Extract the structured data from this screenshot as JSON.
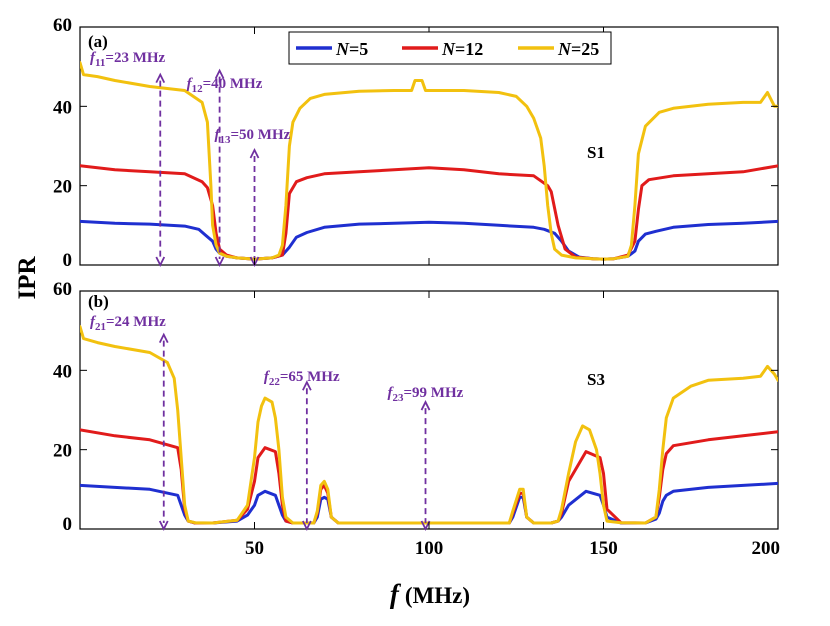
{
  "chart_data": [
    {
      "type": "line",
      "panel_label": "(a)",
      "structure": "S1",
      "xlabel": "f (MHz)",
      "ylabel": "IPR",
      "xlim": [
        0,
        200
      ],
      "ylim": [
        0,
        60
      ],
      "xticks": [
        50,
        100,
        150,
        200
      ],
      "yticks": [
        0,
        20,
        40,
        60
      ],
      "legend": {
        "position": "top-center",
        "entries": [
          "N=5",
          "N=12",
          "N=25"
        ]
      },
      "series": [
        {
          "name": "N=5",
          "color": "#1F2FD0",
          "x": [
            0,
            10,
            20,
            30,
            34,
            36,
            38,
            39,
            40,
            42,
            45,
            50,
            55,
            58,
            60,
            62,
            65,
            70,
            80,
            90,
            100,
            110,
            120,
            130,
            133,
            136,
            138,
            140,
            143,
            147,
            150,
            153,
            157,
            159,
            160,
            162,
            165,
            170,
            180,
            190,
            200
          ],
          "y": [
            11,
            10.5,
            10.3,
            9.8,
            9,
            7.5,
            6,
            4,
            3,
            2.2,
            1.8,
            1.5,
            1.8,
            2.5,
            4.5,
            7,
            8.2,
            9.5,
            10.3,
            10.5,
            10.8,
            10.5,
            10,
            9.5,
            9,
            8,
            6,
            3.5,
            2,
            1.6,
            1.5,
            1.6,
            2.2,
            3.5,
            6,
            7.8,
            8.5,
            9.5,
            10.2,
            10.5,
            11
          ]
        },
        {
          "name": "N=12",
          "color": "#E11B1B",
          "x": [
            0,
            10,
            20,
            30,
            35,
            36.5,
            38,
            39,
            40,
            42,
            45,
            50,
            55,
            58,
            59,
            60,
            62,
            65,
            70,
            80,
            90,
            100,
            110,
            120,
            130,
            134,
            135,
            137,
            139,
            142,
            147,
            150,
            153,
            157,
            159,
            160,
            161,
            163,
            170,
            180,
            190,
            200
          ],
          "y": [
            25,
            24,
            23.5,
            23,
            21,
            19.5,
            15,
            8,
            4,
            2.5,
            1.8,
            1.5,
            1.8,
            2.5,
            8,
            18,
            21,
            22,
            23,
            23.5,
            24,
            24.5,
            24,
            23,
            22.5,
            20,
            18.5,
            10,
            4,
            2,
            1.6,
            1.5,
            1.6,
            2.5,
            6,
            14,
            20,
            21.5,
            22.5,
            23,
            23.5,
            25
          ]
        },
        {
          "name": "N=25",
          "color": "#F2C10F",
          "x": [
            0,
            1,
            5,
            10,
            20,
            30,
            35,
            36.5,
            37.5,
            38,
            39,
            40,
            42,
            45,
            50,
            55,
            57,
            58,
            59,
            60,
            61,
            63,
            66,
            70,
            80,
            90,
            95,
            96,
            98,
            99,
            100,
            110,
            120,
            125,
            128,
            130,
            132,
            133,
            134,
            135,
            136,
            138,
            142,
            147,
            150,
            153,
            157,
            158,
            159,
            160,
            162,
            166,
            170,
            180,
            190,
            195,
            197,
            199,
            200
          ],
          "y": [
            51,
            48,
            47.5,
            46.5,
            45,
            44,
            41,
            36,
            20,
            10,
            5,
            3,
            2.2,
            1.8,
            1.5,
            1.8,
            2.5,
            5,
            15,
            30,
            36,
            39.5,
            42,
            43,
            43.8,
            44,
            44,
            46.5,
            46.5,
            44,
            44,
            44,
            43.5,
            42.5,
            40,
            37,
            32,
            25,
            15,
            8,
            4,
            2.5,
            1.8,
            1.6,
            1.5,
            1.6,
            2.2,
            5,
            15,
            28,
            35,
            38.5,
            39.5,
            40.5,
            41,
            41,
            43.5,
            40,
            40
          ]
        }
      ],
      "annotations": [
        {
          "label": "f11=23 MHz",
          "x": 23,
          "y_top": 48,
          "y_bottom": 0
        },
        {
          "label": "f12=40 MHz",
          "x": 40,
          "y_top": 49,
          "y_bottom": 0
        },
        {
          "label": "f13=50 MHz",
          "x": 50,
          "y_top": 29,
          "y_bottom": 0
        }
      ]
    },
    {
      "type": "line",
      "panel_label": "(b)",
      "structure": "S3",
      "xlabel": "f (MHz)",
      "ylabel": "IPR",
      "xlim": [
        0,
        200
      ],
      "ylim": [
        0,
        60
      ],
      "xticks": [
        50,
        100,
        150,
        200
      ],
      "yticks": [
        0,
        20,
        40,
        60
      ],
      "series": [
        {
          "name": "N=5",
          "color": "#1F2FD0",
          "x": [
            0,
            10,
            20,
            28,
            29,
            30,
            31,
            33,
            38,
            45,
            48,
            50,
            51,
            53,
            56,
            57,
            58,
            59,
            61,
            63,
            67,
            68,
            69,
            70,
            71,
            72,
            74,
            100,
            123,
            124,
            126,
            127,
            128,
            130,
            135,
            137,
            138,
            140,
            145,
            149,
            150,
            151,
            155,
            162,
            165,
            166,
            167,
            168,
            170,
            180,
            190,
            200
          ],
          "y": [
            11,
            10.5,
            10,
            8.5,
            6,
            3.5,
            2,
            1.5,
            1.5,
            2,
            3.5,
            6,
            8.5,
            9.5,
            8.5,
            6,
            3.5,
            2,
            1.5,
            1.5,
            1.5,
            3,
            7.5,
            8,
            7.5,
            3,
            1.5,
            1.5,
            1.5,
            3,
            8,
            8,
            3,
            1.5,
            1.5,
            2,
            3,
            6,
            9.5,
            8.5,
            6,
            3,
            1.5,
            1.5,
            2.5,
            4,
            7,
            8.5,
            9.5,
            10.5,
            11,
            11.5
          ]
        },
        {
          "name": "N=12",
          "color": "#E11B1B",
          "x": [
            0,
            10,
            20,
            28,
            29,
            30,
            31,
            33,
            38,
            45,
            48,
            50,
            51,
            53,
            56,
            57,
            58,
            59,
            61,
            63,
            67,
            68,
            69,
            70,
            71,
            72,
            74,
            100,
            123,
            124,
            126,
            127,
            128,
            130,
            135,
            137,
            138,
            140,
            145,
            149,
            150,
            151,
            155,
            162,
            165,
            166,
            167,
            168,
            170,
            180,
            190,
            200
          ],
          "y": [
            25,
            23.5,
            22.5,
            20.5,
            15,
            5,
            2,
            1.5,
            1.5,
            2.2,
            5,
            12,
            18,
            20.5,
            19.5,
            14,
            6,
            2,
            1.5,
            1.5,
            1.5,
            4,
            10,
            11,
            9,
            3,
            1.5,
            1.5,
            1.5,
            4,
            9,
            9,
            3,
            1.5,
            1.5,
            2,
            4,
            12,
            19.5,
            18,
            14,
            5,
            1.6,
            1.5,
            3,
            8,
            15,
            19,
            21,
            22.5,
            23.5,
            24.5
          ]
        },
        {
          "name": "N=25",
          "color": "#F2C10F",
          "x": [
            0,
            1,
            5,
            10,
            20,
            25,
            27,
            28,
            29,
            30,
            31,
            33,
            38,
            45,
            48,
            50,
            51,
            52,
            53,
            55,
            56,
            57,
            58,
            59,
            61,
            63,
            67,
            68,
            69,
            70,
            71,
            72,
            74,
            100,
            123,
            124,
            126,
            127,
            128,
            130,
            135,
            137,
            138,
            140,
            142,
            144,
            146,
            148,
            149,
            150,
            151,
            155,
            162,
            165,
            166,
            167,
            168,
            170,
            175,
            180,
            190,
            195,
            197,
            199,
            200
          ],
          "y": [
            51,
            48,
            47,
            46,
            44.5,
            42,
            38,
            30,
            18,
            6,
            2,
            1.6,
            1.5,
            2.2,
            6,
            18,
            27,
            31,
            33,
            32,
            28,
            20,
            8,
            3,
            1.5,
            1.5,
            1.5,
            4.5,
            11,
            12,
            10,
            3,
            1.5,
            1.5,
            1.5,
            4.5,
            10,
            10,
            3,
            1.5,
            1.5,
            2,
            5,
            14,
            22,
            26,
            25,
            20,
            14,
            6,
            2,
            1.6,
            1.5,
            3,
            10,
            20,
            28,
            33,
            36,
            37.5,
            38,
            38.5,
            41,
            39,
            37.5
          ]
        }
      ],
      "annotations": [
        {
          "label": "f21=24 MHz",
          "x": 24,
          "y_top": 49,
          "y_bottom": 0
        },
        {
          "label": "f22=65 MHz",
          "x": 65,
          "y_top": 37,
          "y_bottom": 0
        },
        {
          "label": "f23=99 MHz",
          "x": 99,
          "y_top": 32,
          "y_bottom": 0
        }
      ]
    }
  ]
}
